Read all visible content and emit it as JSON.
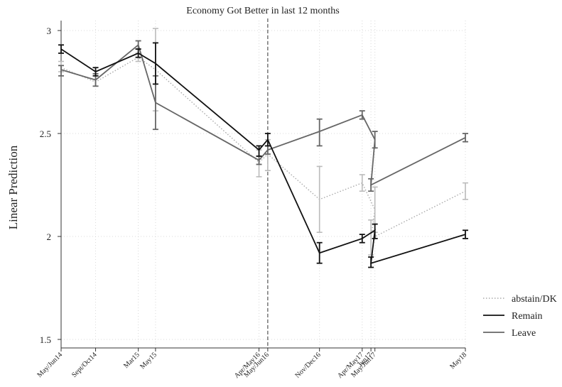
{
  "chart_data": {
    "type": "line",
    "title": "Economy Got Better in last 12 months",
    "ylabel": "Linear Prediction",
    "xlabel": "",
    "ylim": [
      1.5,
      3.0
    ],
    "yticks": [
      1.5,
      2,
      2.5,
      3
    ],
    "ytick_labels": [
      "1.5",
      "2",
      "2.5",
      "3"
    ],
    "x_dates": [
      "2014-06-01",
      "2014-10-01",
      "2015-03-01",
      "2015-05-01",
      "2016-05-01",
      "2016-06-01",
      "2016-12-01",
      "2017-05-01",
      "2017-06-15",
      "2017-06-01",
      "2018-05-01"
    ],
    "categories": [
      "May/Jun14",
      "Sept/Oct14",
      "Mar15",
      "May15",
      "Apr/May16",
      "May/Jun16",
      "Nov/Dec16",
      "Apr/May17",
      "May/Jun17",
      "Jun17",
      "May18"
    ],
    "reference_line_category": "May/Jun16",
    "grid": true,
    "legend_position": "right",
    "series": [
      {
        "name": "abstain/DK",
        "color": "#aaaaaa",
        "style": "dotted",
        "values": [
          2.82,
          2.75,
          2.87,
          2.81,
          2.36,
          2.4,
          2.18,
          2.26,
          2.13,
          1.99,
          2.22
        ],
        "lower": [
          2.8,
          2.73,
          2.85,
          2.61,
          2.29,
          2.32,
          2.02,
          2.22,
          2.02,
          1.91,
          2.18
        ],
        "upper": [
          2.85,
          2.78,
          2.89,
          3.01,
          2.42,
          2.47,
          2.34,
          2.3,
          2.24,
          2.08,
          2.26
        ]
      },
      {
        "name": "Remain",
        "color": "#111111",
        "style": "solid",
        "values": [
          2.91,
          2.8,
          2.89,
          2.84,
          2.42,
          2.47,
          1.92,
          1.99,
          2.03,
          1.87,
          2.01
        ],
        "lower": [
          2.89,
          2.78,
          2.87,
          2.74,
          2.39,
          2.44,
          1.87,
          1.97,
          1.99,
          1.85,
          1.99
        ],
        "upper": [
          2.93,
          2.82,
          2.91,
          2.94,
          2.44,
          2.5,
          1.97,
          2.01,
          2.06,
          1.9,
          2.03
        ]
      },
      {
        "name": "Leave",
        "color": "#666666",
        "style": "solid",
        "values": [
          2.81,
          2.76,
          2.93,
          2.65,
          2.37,
          2.42,
          2.51,
          2.59,
          2.47,
          2.25,
          2.48
        ],
        "lower": [
          2.78,
          2.73,
          2.91,
          2.52,
          2.35,
          2.4,
          2.44,
          2.57,
          2.43,
          2.22,
          2.46
        ],
        "upper": [
          2.83,
          2.79,
          2.95,
          2.78,
          2.39,
          2.44,
          2.57,
          2.61,
          2.51,
          2.28,
          2.5
        ]
      }
    ]
  }
}
